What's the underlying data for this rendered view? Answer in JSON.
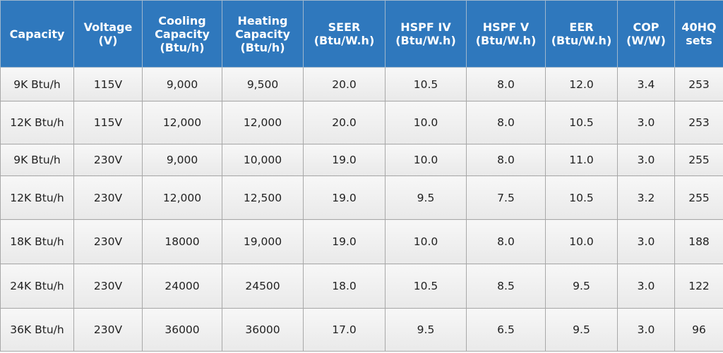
{
  "table": {
    "header": [
      [
        "Capacity"
      ],
      [
        "Voltage",
        "(V)"
      ],
      [
        "Cooling",
        "Capacity",
        "(Btu/h)"
      ],
      [
        "Heating",
        "Capacity",
        "(Btu/h)"
      ],
      [
        "SEER",
        "(Btu/W.h)"
      ],
      [
        "HSPF IV",
        "(Btu/W.h)"
      ],
      [
        "HSPF V",
        "(Btu/W.h)"
      ],
      [
        "EER",
        "(Btu/W.h)"
      ],
      [
        "COP",
        "(W/W)"
      ],
      [
        "40HQ",
        "sets"
      ]
    ],
    "rows": [
      [
        "9K Btu/h",
        "115V",
        "9,000",
        "9,500",
        "20.0",
        "10.5",
        "8.0",
        "12.0",
        "3.4",
        "253"
      ],
      [
        "12K Btu/h",
        "115V",
        "12,000",
        "12,000",
        "20.0",
        "10.0",
        "8.0",
        "10.5",
        "3.0",
        "253"
      ],
      [
        "9K Btu/h",
        "230V",
        "9,000",
        "10,000",
        "19.0",
        "10.0",
        "8.0",
        "11.0",
        "3.0",
        "255"
      ],
      [
        "12K Btu/h",
        "230V",
        "12,000",
        "12,500",
        "19.0",
        "9.5",
        "7.5",
        "10.5",
        "3.2",
        "255"
      ],
      [
        "18K Btu/h",
        "230V",
        "18000",
        "19,000",
        "19.0",
        "10.0",
        "8.0",
        "10.0",
        "3.0",
        "188"
      ],
      [
        "24K Btu/h",
        "230V",
        "24000",
        "24500",
        "18.0",
        "10.5",
        "8.5",
        "9.5",
        "3.0",
        "122"
      ],
      [
        "36K Btu/h",
        "230V",
        "36000",
        "36000",
        "17.0",
        "9.5",
        "6.5",
        "9.5",
        "3.0",
        "96"
      ]
    ]
  }
}
